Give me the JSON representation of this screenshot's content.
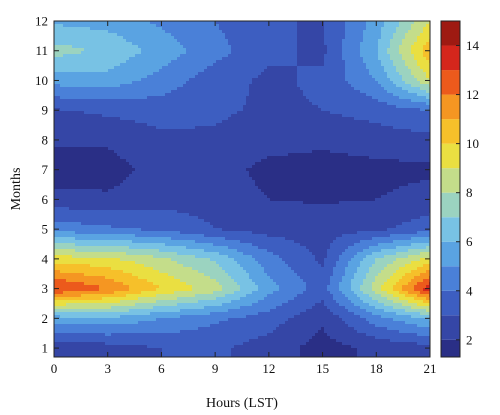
{
  "chart_data": {
    "type": "heatmap",
    "subtype": "filled-contour",
    "title": "",
    "xlabel": "Hours (LST)",
    "ylabel": "Months",
    "x": [
      0,
      3,
      6,
      9,
      12,
      15,
      18,
      21
    ],
    "y": [
      1,
      2,
      3,
      4,
      5,
      6,
      7,
      8,
      9,
      10,
      11,
      12
    ],
    "xlim": [
      0,
      21
    ],
    "ylim": [
      0.7,
      12
    ],
    "xticks": [
      "0",
      "3",
      "6",
      "9",
      "12",
      "15",
      "18",
      "21"
    ],
    "yticks": [
      "1",
      "2",
      "3",
      "4",
      "5",
      "6",
      "7",
      "8",
      "9",
      "10",
      "11",
      "12"
    ],
    "z": [
      [
        2.2,
        2.5,
        3.0,
        3.2,
        2.5,
        1.6,
        2.2,
        2.6
      ],
      [
        5.5,
        5.8,
        5.0,
        4.2,
        3.5,
        2.2,
        4.6,
        6.2
      ],
      [
        13.2,
        12.0,
        10.0,
        8.5,
        5.4,
        3.5,
        8.6,
        13.8
      ],
      [
        9.5,
        9.2,
        8.2,
        6.8,
        4.4,
        2.8,
        7.0,
        9.4
      ],
      [
        4.6,
        4.2,
        3.8,
        3.0,
        2.6,
        2.5,
        2.8,
        3.6
      ],
      [
        2.4,
        2.2,
        2.6,
        2.6,
        2.0,
        1.9,
        2.0,
        2.4
      ],
      [
        1.4,
        1.5,
        2.5,
        2.4,
        1.7,
        1.6,
        1.7,
        1.8
      ],
      [
        2.2,
        2.2,
        2.8,
        2.8,
        2.4,
        2.2,
        2.5,
        2.7
      ],
      [
        2.9,
        3.2,
        3.4,
        3.2,
        2.8,
        3.0,
        3.4,
        4.0
      ],
      [
        5.4,
        5.6,
        4.6,
        3.4,
        2.8,
        3.2,
        5.0,
        9.0
      ],
      [
        7.4,
        6.8,
        5.6,
        4.4,
        3.2,
        2.8,
        6.0,
        10.8
      ],
      [
        5.8,
        5.6,
        4.8,
        4.0,
        3.0,
        3.0,
        5.4,
        9.0
      ]
    ],
    "levels": [
      1,
      2,
      3,
      4,
      5,
      6,
      7,
      8,
      9,
      10,
      11,
      12,
      13,
      14
    ],
    "colors": [
      "#2a2f86",
      "#3546a6",
      "#3d5ec1",
      "#4a80d8",
      "#5aa3e2",
      "#78c2e4",
      "#9bd3c0",
      "#c4dd8a",
      "#eadf41",
      "#f6c02a",
      "#f59622",
      "#ec5a1c",
      "#d4261c",
      "#9e1a12"
    ],
    "colorbar": {
      "ticks": [
        "2",
        "4",
        "6",
        "8",
        "10",
        "12",
        "14"
      ],
      "range": [
        1.3,
        15
      ],
      "position": "right"
    },
    "grid": false,
    "legend": "none"
  }
}
